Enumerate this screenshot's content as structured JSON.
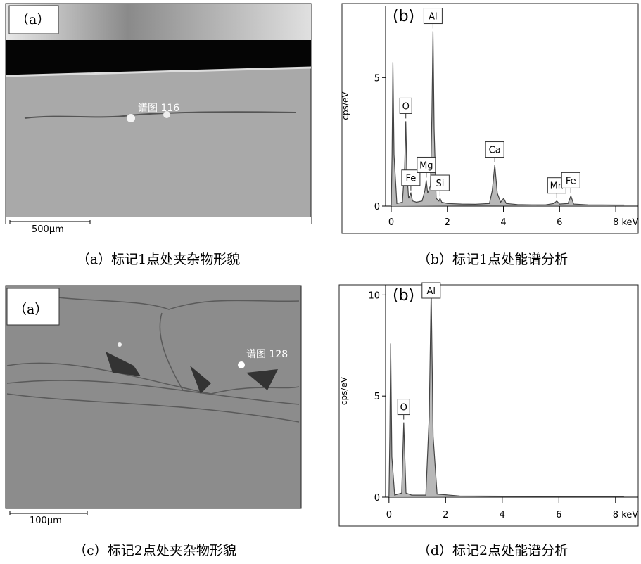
{
  "images": [
    {
      "panel_label": "（a）",
      "spot_label": "谱图 116",
      "scale_bar": "500μm"
    },
    {
      "panel_label": "（a）",
      "spot_label": "谱图 128",
      "scale_bar": "100μm"
    }
  ],
  "captions": [
    "（a）标记1点处夹杂物形貌",
    "（b）标记1点处能谱分析",
    "（c）标记2点处夹杂物形貌",
    "（d）标记2点处能谱分析"
  ],
  "chart_data": [
    {
      "type": "line",
      "panel_label": "(b)",
      "y_label": "cps/eV",
      "color": "#444444",
      "x": [
        0,
        0.03,
        0.06,
        0.1,
        0.2,
        0.4,
        0.48,
        0.52,
        0.56,
        0.62,
        0.7,
        0.76,
        0.9,
        1.1,
        1.2,
        1.25,
        1.3,
        1.4,
        1.45,
        1.49,
        1.53,
        1.6,
        1.7,
        1.74,
        1.8,
        2.0,
        2.5,
        3.0,
        3.5,
        3.6,
        3.69,
        3.78,
        3.9,
        4.01,
        4.1,
        4.5,
        5.0,
        5.5,
        5.8,
        5.9,
        6.0,
        6.3,
        6.4,
        6.5,
        7.0,
        8.0,
        8.3
      ],
      "values": [
        0,
        2,
        5.6,
        2,
        0.1,
        0.15,
        1.5,
        3.3,
        1.3,
        0.3,
        0.5,
        0.2,
        0.15,
        0.2,
        0.6,
        1.0,
        0.5,
        0.8,
        3.5,
        6.8,
        3.0,
        0.3,
        0.2,
        0.3,
        0.15,
        0.1,
        0.08,
        0.07,
        0.1,
        0.6,
        1.6,
        0.5,
        0.15,
        0.3,
        0.1,
        0.06,
        0.05,
        0.05,
        0.1,
        0.2,
        0.08,
        0.1,
        0.4,
        0.08,
        0.05,
        0.04,
        0.04
      ],
      "xlim": [
        -0.2,
        8.8
      ],
      "ylim": [
        0,
        7.8
      ],
      "xticks": [
        0,
        2,
        4,
        6,
        {
          "value": 8,
          "label": "8 keV"
        }
      ],
      "yticks": [
        0,
        5
      ],
      "peaks": [
        {
          "label": "O",
          "x": 0.52
        },
        {
          "label": "Fe",
          "x": 0.7
        },
        {
          "label": "Mg",
          "x": 1.25
        },
        {
          "label": "Al",
          "x": 1.49
        },
        {
          "label": "Si",
          "x": 1.74
        },
        {
          "label": "Ca",
          "x": 3.69
        },
        {
          "label": "Mn",
          "x": 5.9
        },
        {
          "label": "Fe",
          "x": 6.4
        }
      ]
    },
    {
      "type": "line",
      "panel_label": "(b)",
      "y_label": "cps/eV",
      "color": "#444444",
      "x": [
        0,
        0.03,
        0.06,
        0.1,
        0.2,
        0.45,
        0.52,
        0.6,
        0.8,
        1.3,
        1.42,
        1.49,
        1.56,
        1.7,
        2.5,
        4,
        6,
        8,
        8.3
      ],
      "values": [
        0,
        3,
        7.6,
        2,
        0.1,
        0.2,
        3.7,
        0.2,
        0.1,
        0.1,
        4,
        10.3,
        3,
        0.15,
        0.06,
        0.05,
        0.04,
        0.04,
        0.04
      ],
      "xlim": [
        -0.12,
        8.8
      ],
      "ylim": [
        0,
        10.5
      ],
      "xticks": [
        0,
        2,
        4,
        6,
        {
          "value": 8,
          "label": "8 keV"
        }
      ],
      "yticks": [
        0,
        5,
        10
      ],
      "peaks": [
        {
          "label": "O",
          "x": 0.52
        },
        {
          "label": "Al",
          "x": 1.49
        }
      ]
    }
  ]
}
